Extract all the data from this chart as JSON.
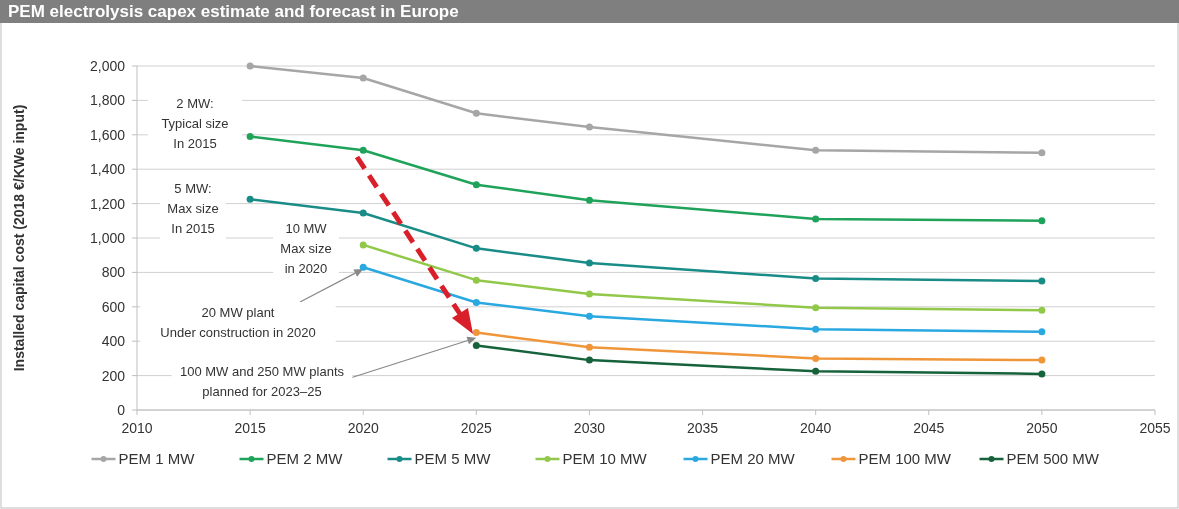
{
  "chart_data": {
    "type": "line",
    "title": "PEM electrolysis capex estimate and forecast in Europe",
    "ylabel": "Installed capital cost (2018 €/KWe input)",
    "xlim": [
      2010,
      2055
    ],
    "xticks": [
      2010,
      2015,
      2020,
      2025,
      2030,
      2035,
      2040,
      2045,
      2050,
      2055
    ],
    "ylim": [
      0,
      2000
    ],
    "yticks": [
      0,
      200,
      400,
      600,
      800,
      {
        "value": 1000,
        "label": "1,000"
      },
      {
        "value": 1200,
        "label": "1,200"
      },
      {
        "value": 1400,
        "label": "1,400"
      },
      {
        "value": 1600,
        "label": "1,600"
      },
      {
        "value": 1800,
        "label": "1,800"
      },
      {
        "value": 2000,
        "label": "2,000"
      }
    ],
    "grid": "y",
    "legend": "bottom",
    "marker": "circle",
    "line_style": "solid",
    "annotations": [
      "2 MW:\nTypical size\nIn 2015",
      "5 MW:\nMax size\nIn 2015",
      "10 MW\nMax size\nin 2020",
      {
        "text": "20 MW plant\nUnder construction in 2020",
        "x": 2020,
        "y": 820
      },
      {
        "text": "100 MW and 250 MW plants\nplanned for 2023–25",
        "x": 2025,
        "y": 420
      }
    ],
    "series": [
      {
        "name": "PEM 1 MW",
        "color": "#a6a6a6",
        "x": [
          2015,
          2020,
          2025,
          2030,
          2040,
          2050
        ],
        "values": [
          2000,
          1930,
          1725,
          1645,
          1510,
          1495
        ]
      },
      {
        "name": "PEM 2 MW",
        "color": "#1fa35a",
        "x": [
          2015,
          2020,
          2025,
          2030,
          2040,
          2050
        ],
        "values": [
          1590,
          1510,
          1310,
          1220,
          1110,
          1100
        ]
      },
      {
        "name": "PEM 5 MW",
        "color": "#1a8c88",
        "x": [
          2015,
          2020,
          2025,
          2030,
          2040,
          2050
        ],
        "values": [
          1225,
          1145,
          940,
          855,
          765,
          750
        ]
      },
      {
        "name": "PEM 10 MW",
        "color": "#92c84a",
        "x": [
          2020,
          2025,
          2030,
          2040,
          2050
        ],
        "values": [
          960,
          755,
          675,
          595,
          580
        ]
      },
      {
        "name": "PEM 20 MW",
        "color": "#2aa8e0",
        "x": [
          2020,
          2025,
          2030,
          2040,
          2050
        ],
        "values": [
          830,
          625,
          545,
          470,
          455
        ]
      },
      {
        "name": "PEM 100 MW",
        "color": "#f0963a",
        "x": [
          2025,
          2030,
          2040,
          2050
        ],
        "values": [
          450,
          365,
          300,
          290
        ]
      },
      {
        "name": "PEM 500 MW",
        "color": "#16623a",
        "x": [
          2025,
          2030,
          2040,
          2050
        ],
        "values": [
          375,
          290,
          225,
          210
        ]
      }
    ]
  }
}
